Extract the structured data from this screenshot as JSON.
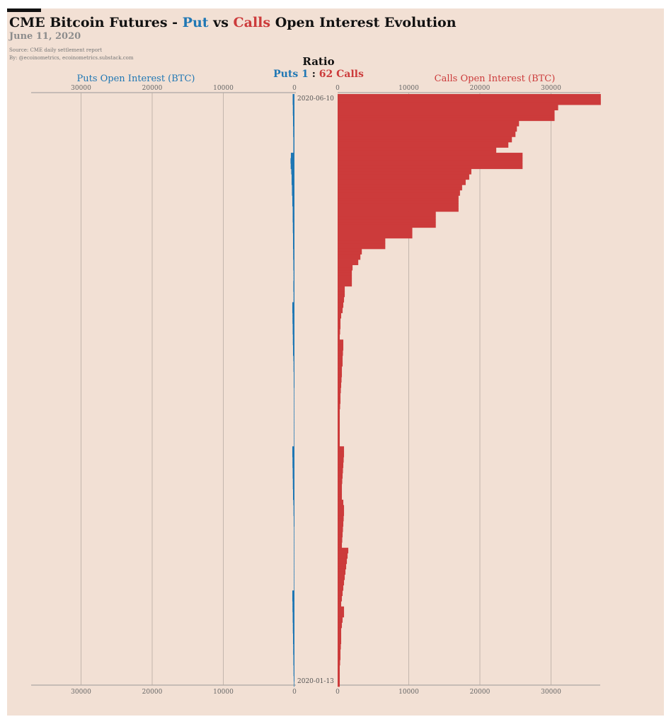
{
  "header": {
    "title_prefix": "CME Bitcoin Futures - ",
    "title_put": "Put",
    "title_vs": " vs ",
    "title_calls": "Calls",
    "title_suffix": " Open Interest Evolution",
    "subtitle": "June 11, 2020",
    "source": "Source: CME daily settlement report",
    "byline": "By: @ecoinometrics, ecoinometrics.substack.com"
  },
  "ratio": {
    "title": "Ratio",
    "puts_label": "Puts 1",
    "separator": " : ",
    "calls_label": "62 Calls"
  },
  "colors": {
    "puts": "#1f77b4",
    "calls": "#cc3b3b",
    "background": "#f2e0d4",
    "grid": "#b5aaa2"
  },
  "chart_data": {
    "type": "bar",
    "orientation": "horizontal-butterfly",
    "date_first": "2020-06-10",
    "date_last": "2020-01-13",
    "left_axis_title": "Puts Open Interest (BTC)",
    "right_axis_title": "Calls Open Interest (BTC)",
    "left_ticks": [
      "30000",
      "20000",
      "10000",
      "0"
    ],
    "right_ticks": [
      "0",
      "10000",
      "20000",
      "30000"
    ],
    "xlim": [
      0,
      37000
    ],
    "grid": true,
    "series": [
      {
        "name": "Puts Open Interest (BTC)",
        "values": [
          500,
          500,
          500,
          500,
          500,
          400,
          400,
          400,
          400,
          400,
          400,
          400,
          300,
          300,
          300,
          300,
          300,
          300,
          300,
          300,
          300,
          300,
          300,
          300,
          350,
          350,
          350,
          350,
          350,
          350,
          350,
          350,
          350,
          350,
          350,
          350,
          350,
          350,
          350,
          350,
          350,
          350,
          350,
          350,
          350,
          350,
          350,
          350,
          350,
          350,
          350,
          350,
          350,
          350,
          350,
          350,
          350,
          350,
          350,
          350,
          350,
          350,
          350,
          350,
          350,
          350,
          350,
          350,
          350,
          350,
          350,
          350,
          350,
          350,
          350,
          350,
          350,
          350,
          350,
          350,
          350,
          350,
          350,
          350,
          350,
          350,
          350,
          350,
          350,
          350,
          350,
          350,
          350,
          350,
          350,
          350,
          350,
          350,
          350,
          350,
          350,
          350,
          350,
          350,
          350,
          350,
          350,
          350,
          350,
          350,
          350,
          350,
          350,
          350,
          350,
          350,
          350,
          350,
          350,
          350,
          350,
          350,
          350,
          350,
          350,
          350,
          350,
          350,
          350,
          350,
          350,
          350,
          350,
          350,
          350,
          350,
          350,
          350,
          350,
          350,
          350,
          350,
          350,
          350,
          350,
          350,
          350,
          350,
          350,
          350,
          350,
          350,
          350,
          350,
          350,
          350,
          350,
          350,
          350,
          350,
          350,
          350,
          350,
          350,
          350,
          350,
          350,
          350,
          350,
          350,
          350,
          350,
          350,
          350,
          350,
          350,
          350,
          350,
          350,
          350,
          350,
          350,
          350,
          350,
          350,
          350,
          350,
          350,
          350,
          350,
          350,
          350,
          350,
          350,
          350,
          350,
          350,
          350,
          350,
          350,
          350,
          350,
          350,
          350,
          350,
          350,
          350,
          350,
          350,
          350,
          350,
          350,
          350,
          350,
          350,
          350,
          350,
          350,
          350,
          350,
          350,
          350,
          350,
          350,
          350,
          350,
          350,
          350,
          350,
          350,
          350,
          350,
          350,
          350,
          350,
          350,
          350,
          350,
          350,
          350,
          350,
          350,
          350,
          350,
          350,
          350,
          350,
          350,
          350,
          350,
          350,
          350,
          350,
          350,
          350,
          350,
          350,
          350,
          350,
          350,
          350,
          350,
          350,
          350,
          350,
          350,
          350,
          350,
          350,
          350,
          350,
          350,
          350,
          350,
          350,
          350,
          350,
          350,
          350,
          350,
          350,
          350,
          350,
          350,
          350,
          350,
          350,
          350,
          350,
          350,
          350,
          350,
          350,
          350,
          350,
          350,
          350,
          350,
          350,
          350,
          350,
          350,
          350,
          350,
          350,
          350,
          350,
          350,
          350,
          350,
          350,
          350,
          350,
          350,
          350,
          350,
          350,
          350,
          350,
          350,
          350,
          350,
          350,
          350,
          350,
          350,
          350,
          350,
          350,
          350,
          350,
          350,
          350,
          350,
          350,
          350,
          350,
          350,
          350,
          350,
          350,
          350,
          350,
          350,
          350,
          350,
          350,
          350,
          350,
          350,
          350,
          350,
          350,
          350,
          350,
          350,
          350,
          350,
          350,
          350,
          350,
          350,
          350,
          350,
          350,
          350,
          350,
          350,
          350,
          350,
          350,
          350,
          350,
          350,
          350,
          350,
          350,
          350,
          350,
          350,
          350,
          350,
          350,
          350,
          350,
          350,
          350,
          350,
          350,
          350,
          350,
          350,
          350,
          350,
          350,
          350,
          350,
          350,
          350,
          350,
          350,
          350,
          350,
          350,
          350,
          350,
          350,
          350,
          350,
          350,
          350,
          350,
          350,
          350,
          350,
          350,
          350,
          350,
          350,
          350,
          350,
          350,
          350,
          350,
          350,
          350,
          350,
          350,
          350,
          350,
          350,
          350,
          350,
          350,
          350,
          350,
          350,
          350,
          350,
          350,
          350,
          350,
          350,
          350,
          350,
          350,
          350,
          350,
          350,
          350,
          350,
          350,
          350,
          350,
          350,
          350,
          350,
          350,
          350,
          350,
          350,
          350,
          350,
          350,
          350,
          350,
          350,
          350,
          350,
          350,
          350,
          350,
          350,
          350,
          350,
          350,
          350,
          350,
          350,
          350,
          350,
          350,
          350,
          350,
          350,
          350,
          350,
          350,
          350,
          350,
          350,
          350,
          350,
          350,
          350,
          350,
          350,
          350,
          350,
          350,
          350,
          350,
          350,
          350,
          350,
          350,
          350,
          350,
          350,
          350,
          350,
          350,
          350,
          350,
          350,
          350,
          350,
          350,
          350,
          350,
          350,
          350,
          350,
          350,
          350,
          350,
          350,
          350,
          350,
          350,
          350,
          350,
          350
        ]
      },
      {
        "name": "Calls Open Interest (BTC)",
        "values": []
      }
    ],
    "puts_profile": [
      [
        0,
        500
      ],
      [
        4,
        450
      ],
      [
        8,
        400
      ],
      [
        12,
        350
      ],
      [
        16,
        300
      ],
      [
        22,
        1000
      ],
      [
        24,
        1100
      ],
      [
        26,
        1050
      ],
      [
        28,
        900
      ],
      [
        30,
        800
      ],
      [
        34,
        700
      ],
      [
        38,
        600
      ],
      [
        42,
        500
      ],
      [
        48,
        450
      ],
      [
        52,
        400
      ],
      [
        58,
        350
      ],
      [
        62,
        300
      ],
      [
        66,
        250
      ],
      [
        70,
        300
      ],
      [
        74,
        250
      ],
      [
        78,
        600
      ],
      [
        82,
        550
      ],
      [
        86,
        500
      ],
      [
        90,
        450
      ],
      [
        94,
        400
      ],
      [
        98,
        300
      ],
      [
        100,
        250
      ],
      [
        104,
        200
      ],
      [
        110,
        150
      ],
      [
        116,
        150
      ],
      [
        122,
        150
      ],
      [
        128,
        150
      ],
      [
        132,
        600
      ],
      [
        136,
        550
      ],
      [
        140,
        500
      ],
      [
        144,
        450
      ],
      [
        148,
        400
      ],
      [
        152,
        300
      ],
      [
        154,
        250
      ],
      [
        158,
        200
      ],
      [
        162,
        150
      ],
      [
        166,
        150
      ],
      [
        170,
        150
      ],
      [
        174,
        150
      ],
      [
        178,
        150
      ],
      [
        182,
        150
      ],
      [
        186,
        600
      ],
      [
        190,
        550
      ],
      [
        194,
        500
      ],
      [
        198,
        450
      ],
      [
        202,
        400
      ],
      [
        206,
        350
      ],
      [
        210,
        300
      ],
      [
        214,
        250
      ],
      [
        218,
        200
      ],
      [
        220,
        150
      ]
    ],
    "calls_profile": [
      [
        0,
        37000
      ],
      [
        2,
        37000
      ],
      [
        4,
        31000
      ],
      [
        6,
        30500
      ],
      [
        8,
        30500
      ],
      [
        10,
        25500
      ],
      [
        12,
        25200
      ],
      [
        14,
        25000
      ],
      [
        16,
        24500
      ],
      [
        18,
        24000
      ],
      [
        20,
        22300
      ],
      [
        22,
        26000
      ],
      [
        24,
        26000
      ],
      [
        26,
        26000
      ],
      [
        28,
        18800
      ],
      [
        30,
        18500
      ],
      [
        32,
        18000
      ],
      [
        34,
        17500
      ],
      [
        36,
        17200
      ],
      [
        38,
        17000
      ],
      [
        40,
        17000
      ],
      [
        42,
        17000
      ],
      [
        44,
        13800
      ],
      [
        46,
        13800
      ],
      [
        48,
        13800
      ],
      [
        50,
        10500
      ],
      [
        52,
        10500
      ],
      [
        54,
        6700
      ],
      [
        56,
        6700
      ],
      [
        58,
        3400
      ],
      [
        60,
        3200
      ],
      [
        62,
        2900
      ],
      [
        64,
        2100
      ],
      [
        66,
        2000
      ],
      [
        68,
        2000
      ],
      [
        70,
        2000
      ],
      [
        72,
        1000
      ],
      [
        74,
        1000
      ],
      [
        76,
        900
      ],
      [
        78,
        800
      ],
      [
        80,
        700
      ],
      [
        82,
        500
      ],
      [
        84,
        400
      ],
      [
        86,
        400
      ],
      [
        88,
        350
      ],
      [
        90,
        300
      ],
      [
        92,
        800
      ],
      [
        94,
        800
      ],
      [
        96,
        750
      ],
      [
        98,
        700
      ],
      [
        100,
        700
      ],
      [
        102,
        600
      ],
      [
        104,
        600
      ],
      [
        106,
        550
      ],
      [
        108,
        500
      ],
      [
        110,
        450
      ],
      [
        112,
        400
      ],
      [
        114,
        400
      ],
      [
        116,
        350
      ],
      [
        118,
        300
      ],
      [
        120,
        300
      ],
      [
        122,
        300
      ],
      [
        124,
        300
      ],
      [
        126,
        300
      ],
      [
        128,
        300
      ],
      [
        130,
        300
      ],
      [
        132,
        900
      ],
      [
        134,
        900
      ],
      [
        136,
        850
      ],
      [
        138,
        800
      ],
      [
        140,
        750
      ],
      [
        142,
        700
      ],
      [
        144,
        650
      ],
      [
        146,
        600
      ],
      [
        148,
        600
      ],
      [
        150,
        600
      ],
      [
        152,
        800
      ],
      [
        154,
        900
      ],
      [
        156,
        900
      ],
      [
        158,
        850
      ],
      [
        160,
        800
      ],
      [
        162,
        750
      ],
      [
        164,
        700
      ],
      [
        166,
        650
      ],
      [
        168,
        600
      ],
      [
        170,
        1500
      ],
      [
        172,
        1400
      ],
      [
        174,
        1300
      ],
      [
        176,
        1200
      ],
      [
        178,
        1100
      ],
      [
        180,
        1000
      ],
      [
        182,
        900
      ],
      [
        184,
        800
      ],
      [
        186,
        700
      ],
      [
        188,
        600
      ],
      [
        190,
        500
      ],
      [
        192,
        900
      ],
      [
        194,
        900
      ],
      [
        196,
        700
      ],
      [
        198,
        600
      ],
      [
        200,
        500
      ],
      [
        202,
        500
      ],
      [
        204,
        500
      ],
      [
        206,
        450
      ],
      [
        208,
        400
      ],
      [
        210,
        400
      ],
      [
        212,
        350
      ],
      [
        214,
        300
      ],
      [
        216,
        300
      ],
      [
        218,
        300
      ],
      [
        220,
        300
      ]
    ]
  }
}
